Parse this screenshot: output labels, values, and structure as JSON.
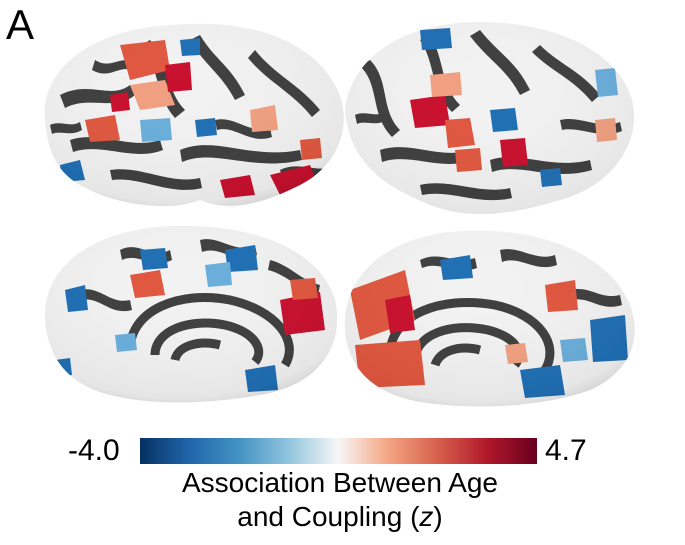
{
  "panel_label": "A",
  "colorbar": {
    "min_label": "-4.0",
    "max_label": "4.7",
    "title_line1": "Association Between Age",
    "title_line2_prefix": "and Coupling (",
    "title_line2_var": "z",
    "title_line2_suffix": ")",
    "stops": [
      "#053061",
      "#2166ac",
      "#4393c3",
      "#92c5de",
      "#f7f7f7",
      "#f4a582",
      "#d6604d",
      "#b2182b",
      "#67001f"
    ]
  },
  "colors": {
    "sulcus": "#3f3f3f",
    "gyrus": "#f2f2f2",
    "pos_strong": "#c8102e",
    "pos_mid": "#e0573f",
    "pos_light": "#f0a080",
    "neg_strong": "#1f6fb4",
    "neg_light": "#6aaedb"
  },
  "views": [
    "left-lateral",
    "right-lateral",
    "left-medial",
    "right-medial"
  ]
}
